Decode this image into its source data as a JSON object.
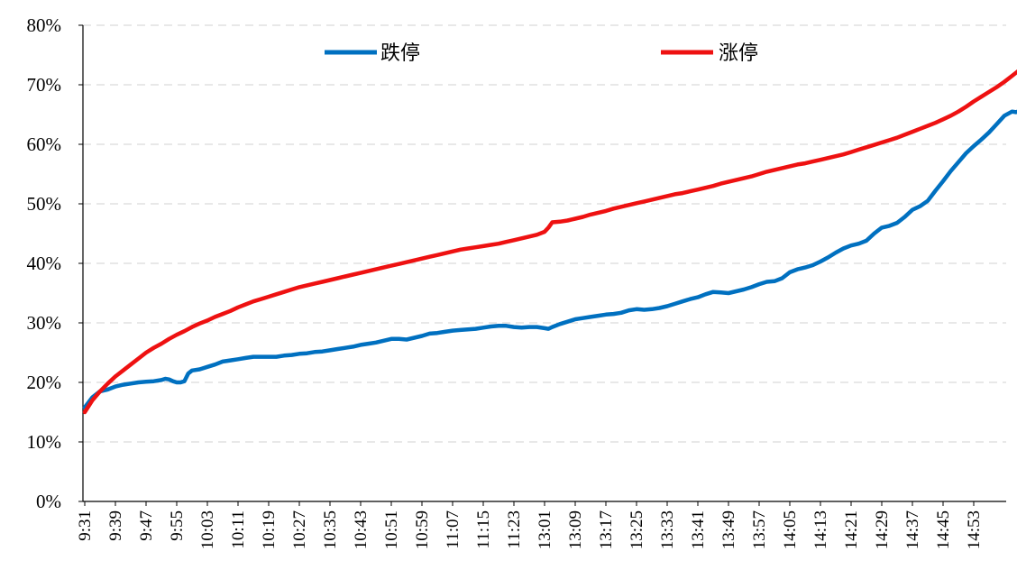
{
  "chart_data": {
    "type": "line",
    "title": "",
    "xlabel": "",
    "ylabel": "",
    "ylim": [
      0,
      80
    ],
    "y_unit": "%",
    "y_ticks": [
      0,
      10,
      20,
      30,
      40,
      50,
      60,
      70,
      80
    ],
    "y_tick_labels": [
      "0%",
      "10%",
      "20%",
      "30%",
      "40%",
      "50%",
      "60%",
      "70%",
      "80%"
    ],
    "grid": "horizontal dashed",
    "legend_position": "top",
    "x_tick_labels": [
      "9:31",
      "9:39",
      "9:47",
      "9:55",
      "10:03",
      "10:11",
      "10:19",
      "10:27",
      "10:35",
      "10:43",
      "10:51",
      "10:59",
      "11:07",
      "11:15",
      "11:23",
      "13:01",
      "13:09",
      "13:17",
      "13:25",
      "13:33",
      "13:41",
      "13:49",
      "13:57",
      "14:05",
      "14:13",
      "14:21",
      "14:29",
      "14:37",
      "14:45",
      "14:53"
    ],
    "x_label_step_minutes": 8,
    "x_axis_minutes_span": 240,
    "series": [
      {
        "name": "跌停",
        "color": "#0070C0",
        "points": [
          [
            0,
            15.8
          ],
          [
            2,
            17.5
          ],
          [
            4,
            18.5
          ],
          [
            6,
            18.8
          ],
          [
            8,
            19.3
          ],
          [
            10,
            19.6
          ],
          [
            12,
            19.8
          ],
          [
            14,
            20.0
          ],
          [
            16,
            20.1
          ],
          [
            18,
            20.2
          ],
          [
            20,
            20.4
          ],
          [
            21,
            20.6
          ],
          [
            22,
            20.5
          ],
          [
            23,
            20.2
          ],
          [
            24,
            20.0
          ],
          [
            25,
            20.0
          ],
          [
            26,
            20.2
          ],
          [
            27,
            21.5
          ],
          [
            28,
            22.0
          ],
          [
            30,
            22.2
          ],
          [
            32,
            22.6
          ],
          [
            34,
            23.0
          ],
          [
            36,
            23.5
          ],
          [
            38,
            23.7
          ],
          [
            40,
            23.9
          ],
          [
            42,
            24.1
          ],
          [
            44,
            24.3
          ],
          [
            46,
            24.3
          ],
          [
            48,
            24.3
          ],
          [
            50,
            24.3
          ],
          [
            52,
            24.5
          ],
          [
            54,
            24.6
          ],
          [
            56,
            24.8
          ],
          [
            58,
            24.9
          ],
          [
            60,
            25.1
          ],
          [
            62,
            25.2
          ],
          [
            64,
            25.4
          ],
          [
            66,
            25.6
          ],
          [
            68,
            25.8
          ],
          [
            70,
            26.0
          ],
          [
            72,
            26.3
          ],
          [
            74,
            26.5
          ],
          [
            76,
            26.7
          ],
          [
            78,
            27.0
          ],
          [
            80,
            27.3
          ],
          [
            82,
            27.3
          ],
          [
            84,
            27.2
          ],
          [
            86,
            27.5
          ],
          [
            88,
            27.8
          ],
          [
            90,
            28.2
          ],
          [
            92,
            28.3
          ],
          [
            94,
            28.5
          ],
          [
            96,
            28.7
          ],
          [
            98,
            28.8
          ],
          [
            100,
            28.9
          ],
          [
            102,
            29.0
          ],
          [
            104,
            29.2
          ],
          [
            106,
            29.4
          ],
          [
            108,
            29.5
          ],
          [
            110,
            29.5
          ],
          [
            112,
            29.3
          ],
          [
            114,
            29.2
          ],
          [
            116,
            29.3
          ],
          [
            118,
            29.3
          ],
          [
            120,
            29.1
          ],
          [
            121,
            29.0
          ],
          [
            122,
            29.3
          ],
          [
            124,
            29.8
          ],
          [
            126,
            30.2
          ],
          [
            128,
            30.6
          ],
          [
            130,
            30.8
          ],
          [
            132,
            31.0
          ],
          [
            134,
            31.2
          ],
          [
            136,
            31.4
          ],
          [
            138,
            31.5
          ],
          [
            140,
            31.7
          ],
          [
            142,
            32.1
          ],
          [
            144,
            32.3
          ],
          [
            146,
            32.2
          ],
          [
            148,
            32.3
          ],
          [
            150,
            32.5
          ],
          [
            152,
            32.8
          ],
          [
            154,
            33.2
          ],
          [
            156,
            33.6
          ],
          [
            158,
            34.0
          ],
          [
            160,
            34.3
          ],
          [
            162,
            34.8
          ],
          [
            164,
            35.2
          ],
          [
            166,
            35.1
          ],
          [
            168,
            35.0
          ],
          [
            170,
            35.3
          ],
          [
            172,
            35.6
          ],
          [
            174,
            36.0
          ],
          [
            176,
            36.5
          ],
          [
            178,
            36.9
          ],
          [
            180,
            37.0
          ],
          [
            182,
            37.5
          ],
          [
            184,
            38.5
          ],
          [
            186,
            39.0
          ],
          [
            188,
            39.3
          ],
          [
            190,
            39.7
          ],
          [
            192,
            40.3
          ],
          [
            194,
            41.0
          ],
          [
            196,
            41.8
          ],
          [
            198,
            42.5
          ],
          [
            200,
            43.0
          ],
          [
            202,
            43.3
          ],
          [
            204,
            43.8
          ],
          [
            206,
            45.0
          ],
          [
            208,
            46.0
          ],
          [
            210,
            46.3
          ],
          [
            212,
            46.8
          ],
          [
            214,
            47.8
          ],
          [
            216,
            49.0
          ],
          [
            218,
            49.6
          ],
          [
            220,
            50.5
          ],
          [
            222,
            52.2
          ],
          [
            224,
            53.8
          ],
          [
            226,
            55.5
          ],
          [
            228,
            57.0
          ],
          [
            230,
            58.5
          ],
          [
            232,
            59.7
          ],
          [
            234,
            60.8
          ],
          [
            236,
            62.0
          ],
          [
            238,
            63.4
          ],
          [
            240,
            64.8
          ],
          [
            242,
            65.5
          ],
          [
            243,
            65.4
          ],
          [
            244,
            65.6
          ],
          [
            245,
            66.1
          ]
        ]
      },
      {
        "name": "涨停",
        "color": "#EE1111",
        "points": [
          [
            0,
            15.0
          ],
          [
            2,
            17.0
          ],
          [
            4,
            18.5
          ],
          [
            6,
            19.8
          ],
          [
            8,
            21.0
          ],
          [
            10,
            22.0
          ],
          [
            12,
            23.0
          ],
          [
            14,
            24.0
          ],
          [
            16,
            25.0
          ],
          [
            18,
            25.8
          ],
          [
            20,
            26.5
          ],
          [
            22,
            27.3
          ],
          [
            24,
            28.0
          ],
          [
            26,
            28.6
          ],
          [
            28,
            29.3
          ],
          [
            30,
            29.9
          ],
          [
            32,
            30.4
          ],
          [
            34,
            31.0
          ],
          [
            36,
            31.5
          ],
          [
            38,
            32.0
          ],
          [
            40,
            32.6
          ],
          [
            42,
            33.1
          ],
          [
            44,
            33.6
          ],
          [
            46,
            34.0
          ],
          [
            48,
            34.4
          ],
          [
            50,
            34.8
          ],
          [
            52,
            35.2
          ],
          [
            54,
            35.6
          ],
          [
            56,
            36.0
          ],
          [
            58,
            36.3
          ],
          [
            60,
            36.6
          ],
          [
            62,
            36.9
          ],
          [
            64,
            37.2
          ],
          [
            66,
            37.5
          ],
          [
            68,
            37.8
          ],
          [
            70,
            38.1
          ],
          [
            72,
            38.4
          ],
          [
            74,
            38.7
          ],
          [
            76,
            39.0
          ],
          [
            78,
            39.3
          ],
          [
            80,
            39.6
          ],
          [
            82,
            39.9
          ],
          [
            84,
            40.2
          ],
          [
            86,
            40.5
          ],
          [
            88,
            40.8
          ],
          [
            90,
            41.1
          ],
          [
            92,
            41.4
          ],
          [
            94,
            41.7
          ],
          [
            96,
            42.0
          ],
          [
            98,
            42.3
          ],
          [
            100,
            42.5
          ],
          [
            102,
            42.7
          ],
          [
            104,
            42.9
          ],
          [
            106,
            43.1
          ],
          [
            108,
            43.3
          ],
          [
            110,
            43.6
          ],
          [
            112,
            43.9
          ],
          [
            114,
            44.2
          ],
          [
            116,
            44.5
          ],
          [
            118,
            44.8
          ],
          [
            120,
            45.3
          ],
          [
            121,
            46.0
          ],
          [
            122,
            46.9
          ],
          [
            124,
            47.0
          ],
          [
            126,
            47.2
          ],
          [
            128,
            47.5
          ],
          [
            130,
            47.8
          ],
          [
            132,
            48.2
          ],
          [
            134,
            48.5
          ],
          [
            136,
            48.8
          ],
          [
            138,
            49.2
          ],
          [
            140,
            49.5
          ],
          [
            142,
            49.8
          ],
          [
            144,
            50.1
          ],
          [
            146,
            50.4
          ],
          [
            148,
            50.7
          ],
          [
            150,
            51.0
          ],
          [
            152,
            51.3
          ],
          [
            154,
            51.6
          ],
          [
            156,
            51.8
          ],
          [
            158,
            52.1
          ],
          [
            160,
            52.4
          ],
          [
            162,
            52.7
          ],
          [
            164,
            53.0
          ],
          [
            166,
            53.4
          ],
          [
            168,
            53.7
          ],
          [
            170,
            54.0
          ],
          [
            172,
            54.3
          ],
          [
            174,
            54.6
          ],
          [
            176,
            55.0
          ],
          [
            178,
            55.4
          ],
          [
            180,
            55.7
          ],
          [
            182,
            56.0
          ],
          [
            184,
            56.3
          ],
          [
            186,
            56.6
          ],
          [
            188,
            56.8
          ],
          [
            190,
            57.1
          ],
          [
            192,
            57.4
          ],
          [
            194,
            57.7
          ],
          [
            196,
            58.0
          ],
          [
            198,
            58.3
          ],
          [
            200,
            58.7
          ],
          [
            202,
            59.1
          ],
          [
            204,
            59.5
          ],
          [
            206,
            59.9
          ],
          [
            208,
            60.3
          ],
          [
            210,
            60.7
          ],
          [
            212,
            61.1
          ],
          [
            214,
            61.6
          ],
          [
            216,
            62.1
          ],
          [
            218,
            62.6
          ],
          [
            220,
            63.1
          ],
          [
            222,
            63.6
          ],
          [
            224,
            64.2
          ],
          [
            226,
            64.8
          ],
          [
            228,
            65.5
          ],
          [
            230,
            66.3
          ],
          [
            232,
            67.2
          ],
          [
            234,
            68.0
          ],
          [
            236,
            68.8
          ],
          [
            238,
            69.6
          ],
          [
            240,
            70.5
          ],
          [
            242,
            71.5
          ],
          [
            244,
            72.5
          ],
          [
            245,
            72.6
          ],
          [
            246,
            73.0
          ]
        ]
      }
    ]
  }
}
